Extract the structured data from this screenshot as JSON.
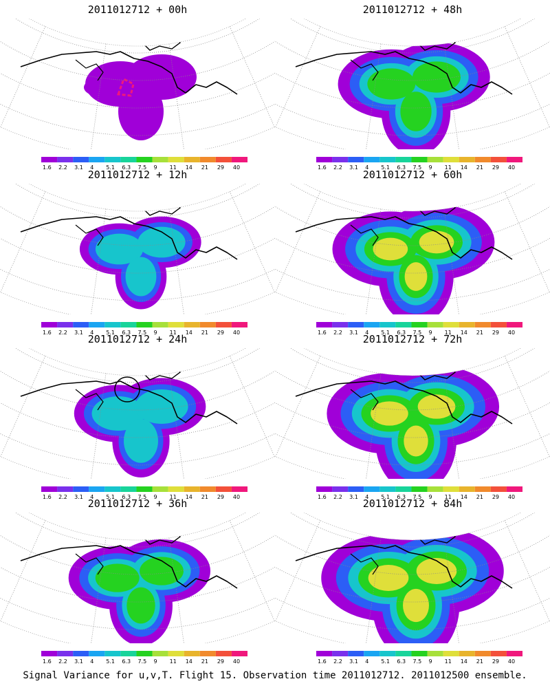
{
  "caption": "Signal Variance for u,v,T. Flight 15. Observation time 2011012712. 2011012500 ensemble.",
  "colorbar": {
    "labels": [
      "1.6",
      "2.2",
      "3.1",
      "4",
      "5.1",
      "6.3",
      "7.5",
      "9",
      "11",
      "14",
      "21",
      "29",
      "40"
    ],
    "colors": [
      "#a000d8",
      "#7a30ec",
      "#2c5ef6",
      "#1aa5f2",
      "#17c5cc",
      "#18d49a",
      "#25d220",
      "#a7e03a",
      "#dfdf3a",
      "#e8b42c",
      "#f18a2c",
      "#f3503a",
      "#f0187c"
    ]
  },
  "panels": [
    {
      "title": "2011012712 + 00h",
      "lead_hours": 0
    },
    {
      "title": "2011012712 + 48h",
      "lead_hours": 48
    },
    {
      "title": "2011012712 + 12h",
      "lead_hours": 12
    },
    {
      "title": "2011012712 + 60h",
      "lead_hours": 60
    },
    {
      "title": "2011012712 + 24h",
      "lead_hours": 24
    },
    {
      "title": "2011012712 + 72h",
      "lead_hours": 72
    },
    {
      "title": "2011012712 + 36h",
      "lead_hours": 36
    },
    {
      "title": "2011012712 + 84h",
      "lead_hours": 84
    }
  ]
}
